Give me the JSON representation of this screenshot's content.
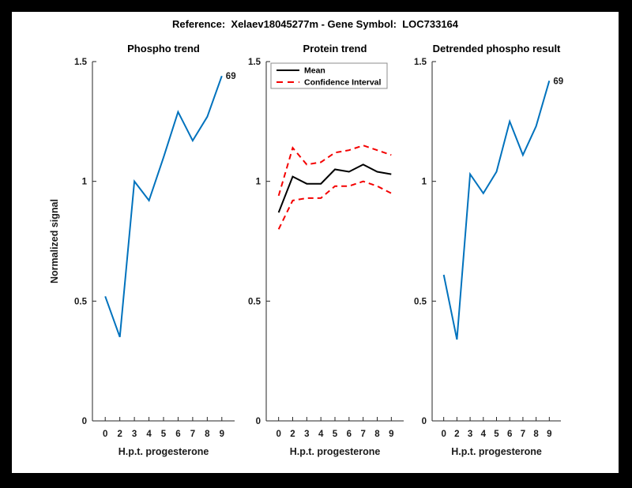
{
  "window": {
    "background": "#000000",
    "figure_background": "#ffffff"
  },
  "figure": {
    "title": "Reference:  Xelaev18045277m - Gene Symbol:  LOC733164"
  },
  "axes_shared": {
    "xlabel": "H.p.t. progesterone",
    "ylabel": "Normalized signal",
    "x_tick_labels": [
      "0",
      "2",
      "3",
      "4",
      "5",
      "6",
      "7",
      "8",
      "9"
    ],
    "y_ticks": [
      0,
      0.5,
      1,
      1.5
    ],
    "y_tick_labels": [
      "0",
      "0.5",
      "1",
      "1.5"
    ],
    "ylim": [
      0,
      1.5
    ],
    "axis_color": "#262626",
    "text_color": "#1a1a1a",
    "grid": false
  },
  "chart_data": [
    {
      "type": "line",
      "title": "Phospho trend",
      "xlabel": "H.p.t. progesterone",
      "ylabel": "Normalized signal",
      "show_ylabel": true,
      "x_tick_labels": [
        "0",
        "2",
        "3",
        "4",
        "5",
        "6",
        "7",
        "8",
        "9"
      ],
      "ylim": [
        0,
        1.5
      ],
      "series": [
        {
          "name": "Phospho signal",
          "color": "#0072BD",
          "dash": false,
          "in_legend": false,
          "values": [
            0.52,
            0.35,
            1.0,
            0.92,
            1.1,
            1.29,
            1.17,
            1.27,
            1.44
          ]
        }
      ],
      "end_annotation": "69"
    },
    {
      "type": "line",
      "title": "Protein trend",
      "xlabel": "H.p.t. progesterone",
      "show_ylabel": false,
      "x_tick_labels": [
        "0",
        "2",
        "3",
        "4",
        "5",
        "6",
        "7",
        "8",
        "9"
      ],
      "ylim": [
        0,
        1.5
      ],
      "series": [
        {
          "name": "Mean",
          "color": "#000000",
          "dash": false,
          "in_legend": true,
          "values": [
            0.87,
            1.02,
            0.99,
            0.99,
            1.05,
            1.04,
            1.07,
            1.04,
            1.03
          ]
        },
        {
          "name": "Confidence Interval",
          "color": "#f40000",
          "dash": true,
          "in_legend": true,
          "values": [
            0.94,
            1.14,
            1.07,
            1.08,
            1.12,
            1.13,
            1.15,
            1.13,
            1.11
          ]
        },
        {
          "name": "Confidence Interval (lower bound)",
          "color": "#f40000",
          "dash": true,
          "in_legend": false,
          "values": [
            0.8,
            0.92,
            0.93,
            0.93,
            0.98,
            0.98,
            1.0,
            0.98,
            0.95
          ]
        }
      ],
      "legend": {
        "position": "northwest",
        "entries": [
          "Mean",
          "Confidence Interval"
        ]
      }
    },
    {
      "type": "line",
      "title": "Detrended phospho result",
      "xlabel": "H.p.t. progesterone",
      "show_ylabel": false,
      "x_tick_labels": [
        "0",
        "2",
        "3",
        "4",
        "5",
        "6",
        "7",
        "8",
        "9"
      ],
      "ylim": [
        0,
        1.5
      ],
      "series": [
        {
          "name": "Detrended phospho signal",
          "color": "#0072BD",
          "dash": false,
          "in_legend": false,
          "values": [
            0.61,
            0.34,
            1.03,
            0.95,
            1.04,
            1.25,
            1.11,
            1.23,
            1.42
          ]
        }
      ],
      "end_annotation": "69"
    }
  ]
}
